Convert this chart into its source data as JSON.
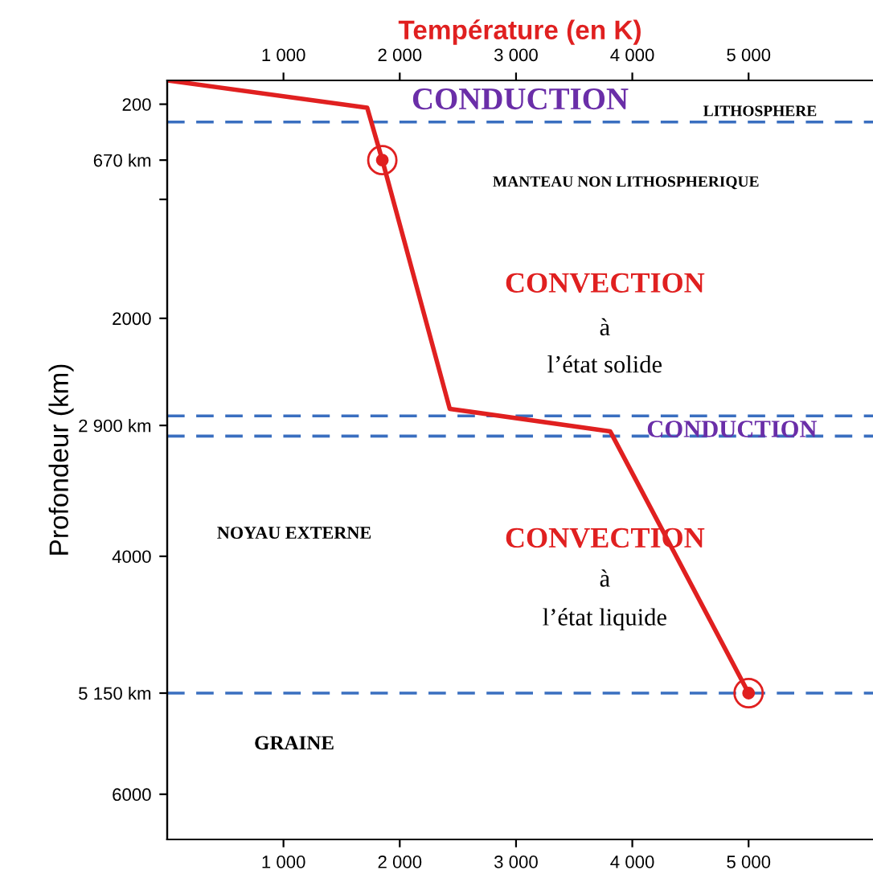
{
  "chart_data": {
    "type": "line",
    "x2label": "Température (en K)",
    "ylabel": "Profondeur (km)",
    "xlim": [
      0,
      6070
    ],
    "xticks": [
      {
        "value": 1000,
        "label": "1 000"
      },
      {
        "value": 2000,
        "label": "2 000"
      },
      {
        "value": 3000,
        "label": "3 000"
      },
      {
        "value": 4000,
        "label": "4 000"
      },
      {
        "value": 5000,
        "label": "5 000"
      }
    ],
    "x2lim": [
      0,
      6070
    ],
    "x2ticks": [
      {
        "value": 1000,
        "label": "1 000"
      },
      {
        "value": 2000,
        "label": "2 000"
      },
      {
        "value": 3000,
        "label": "3 000"
      },
      {
        "value": 4000,
        "label": "4 000"
      },
      {
        "value": 5000,
        "label": "5 000"
      }
    ],
    "ylim": [
      6380,
      0
    ],
    "yticks": [
      200,
      {
        "value": 670,
        "label": "670 km"
      },
      {
        "value": 1000,
        "label": null
      },
      2000,
      {
        "value": 2900,
        "label": "2 900 km"
      },
      4000,
      {
        "value": 5150,
        "label": "5 150 km"
      },
      6000
    ],
    "series": [
      {
        "color": "#e02020",
        "x": [
          0,
          1720,
          1850,
          2430,
          3810,
          5000
        ],
        "values": [
          0,
          230,
          670,
          2760,
          2950,
          5150
        ]
      },
      {
        "type": "scatter",
        "color": "#e02020",
        "marker": "circle",
        "x": [
          1850,
          5000
        ],
        "values": [
          670,
          5150
        ]
      }
    ],
    "ref_lines": [
      {
        "axis": "y",
        "value": 350,
        "color": "#3a6fc0",
        "line_style": "dashed"
      },
      {
        "axis": "y",
        "value": 2820,
        "color": "#3a6fc0",
        "line_style": "dashed"
      },
      {
        "axis": "y",
        "value": 2990,
        "color": "#3a6fc0",
        "line_style": "dashed"
      },
      {
        "axis": "y",
        "value": 5150,
        "color": "#3a6fc0",
        "line_style": "dashed"
      }
    ],
    "annotations": [
      "CONDUCTION",
      "LITHOSPHERE",
      "MANTEAU NON LITHOSPHERIQUE",
      "CONVECTION",
      "à",
      "l’état solide",
      "CONDUCTION",
      "NOYAU EXTERNE",
      "CONVECTION",
      "à",
      "l’état liquide",
      "GRAINE"
    ],
    "grid": false,
    "legend": false
  }
}
